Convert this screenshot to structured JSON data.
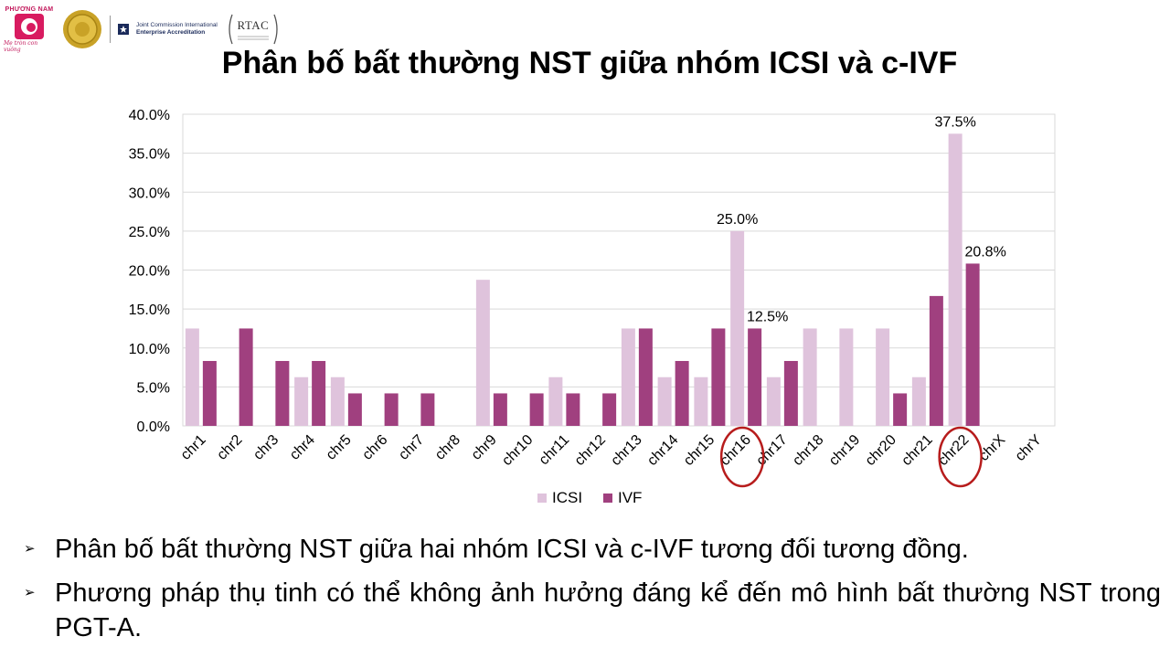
{
  "header": {
    "logo_phuong_nam": "PHƯƠNG NAM",
    "logo_phuong_nam_tagline": "Mẹ tròn con vuông",
    "jci_line1": "Joint Commission International",
    "jci_line2": "Enterprise Accreditation",
    "rtac": "RTAC"
  },
  "slide": {
    "title": "Phân bố bất thường NST giữa nhóm ICSI và c-IVF"
  },
  "chart_data": {
    "type": "bar",
    "title": "",
    "xlabel": "",
    "ylabel": "",
    "categories": [
      "chr1",
      "chr2",
      "chr3",
      "chr4",
      "chr5",
      "chr6",
      "chr7",
      "chr8",
      "chr9",
      "chr10",
      "chr11",
      "chr12",
      "chr13",
      "chr14",
      "chr15",
      "chr16",
      "chr17",
      "chr18",
      "chr19",
      "chr20",
      "chr21",
      "chr22",
      "chrX",
      "chrY"
    ],
    "series": [
      {
        "name": "ICSI",
        "color": "#dfc3dc",
        "values": [
          12.5,
          0,
          0,
          6.25,
          6.25,
          0,
          0,
          0,
          18.75,
          0,
          6.25,
          0,
          12.5,
          6.25,
          6.25,
          25.0,
          6.25,
          12.5,
          12.5,
          12.5,
          6.25,
          37.5,
          0,
          0
        ]
      },
      {
        "name": "IVF",
        "color": "#a0407f",
        "values": [
          8.33,
          12.5,
          8.33,
          8.33,
          4.17,
          4.17,
          4.17,
          0,
          4.17,
          4.17,
          4.17,
          4.17,
          12.5,
          8.33,
          12.5,
          12.5,
          8.33,
          0,
          0,
          4.17,
          16.67,
          20.83,
          0,
          0
        ]
      }
    ],
    "ylim": [
      0,
      40
    ],
    "yticks": [
      "0.0%",
      "5.0%",
      "10.0%",
      "15.0%",
      "20.0%",
      "25.0%",
      "30.0%",
      "35.0%",
      "40.0%"
    ],
    "data_labels": [
      {
        "category": "chr16",
        "series": "ICSI",
        "text": "25.0%"
      },
      {
        "category": "chr16",
        "series": "IVF",
        "text": "12.5%"
      },
      {
        "category": "chr22",
        "series": "ICSI",
        "text": "37.5%"
      },
      {
        "category": "chr22",
        "series": "IVF",
        "text": "20.8%"
      }
    ],
    "highlighted_categories": [
      "chr16",
      "chr22"
    ],
    "highlight_color": "#b71c1c",
    "grid": true,
    "legend_position": "bottom"
  },
  "bullets": [
    "Phân bố bất thường NST giữa hai nhóm ICSI và c-IVF tương đối tương đồng.",
    "Phương pháp thụ tinh có thể không ảnh hưởng đáng kể đến mô hình bất thường NST trong PGT-A."
  ]
}
